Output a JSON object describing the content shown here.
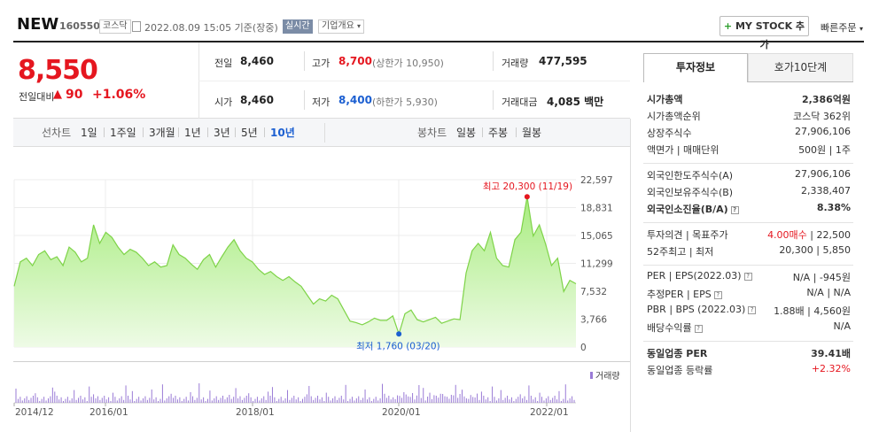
{
  "header": {
    "name": "NEW",
    "code": "160550",
    "market": "코스닥",
    "datetime": "2022.08.09 15:05 기준(장중)",
    "realtime": "실시간",
    "company_overview": "기업개요",
    "mystock": "MY STOCK 추가",
    "quick_order": "빠른주문"
  },
  "quote": {
    "price": "8,550",
    "change_label": "전일대비",
    "change_value": "90",
    "change_pct": "+1.06%",
    "prev_label": "전일",
    "prev_value": "8,460",
    "high_label": "고가",
    "high_value": "8,700",
    "high_limit": "(상한가 10,950)",
    "volume_label": "거래량",
    "volume_value": "477,595",
    "open_label": "시가",
    "open_value": "8,460",
    "low_label": "저가",
    "low_value": "8,400",
    "low_limit": "(하한가 5,930)",
    "amount_label": "거래대금",
    "amount_value": "4,085 백만"
  },
  "toolbar": {
    "line_label": "선차트",
    "periods": [
      "1일",
      "1주일",
      "3개월",
      "1년",
      "3년",
      "5년",
      "10년"
    ],
    "active_period": "10년",
    "candle_label": "봉차트",
    "candles": [
      "일봉",
      "주봉",
      "월봉"
    ]
  },
  "chart_data": {
    "type": "area",
    "title": "",
    "y_ticks": [
      "22,597",
      "18,831",
      "15,065",
      "11,299",
      "7,532",
      "3,766",
      "0"
    ],
    "ylim": [
      0,
      22597
    ],
    "x_ticks": [
      "2014/12",
      "2016/01",
      "2018/01",
      "2020/01",
      "2022/01"
    ],
    "high_annotation": "최고 20,300 (11/19)",
    "low_annotation": "최저 1,760 (03/20)",
    "volume_label": "거래량",
    "series": [
      {
        "x": [
          "2014/12",
          "2015/01",
          "2015/02",
          "2015/03",
          "2015/04",
          "2015/05",
          "2015/06",
          "2015/07",
          "2015/08",
          "2015/09",
          "2015/10",
          "2015/11",
          "2015/12",
          "2016/01",
          "2016/02",
          "2016/03",
          "2016/04",
          "2016/05",
          "2016/06",
          "2016/07",
          "2016/08",
          "2016/09",
          "2016/10",
          "2016/11",
          "2016/12",
          "2017/01",
          "2017/02",
          "2017/03",
          "2017/04",
          "2017/05",
          "2017/06",
          "2017/07",
          "2017/08",
          "2017/09",
          "2017/10",
          "2017/11",
          "2017/12",
          "2018/01",
          "2018/02",
          "2018/03",
          "2018/04",
          "2018/05",
          "2018/06",
          "2018/07",
          "2018/08",
          "2018/09",
          "2018/10",
          "2018/11",
          "2018/12",
          "2019/01",
          "2019/02",
          "2019/03",
          "2019/04",
          "2019/05",
          "2019/06",
          "2019/07",
          "2019/08",
          "2019/09",
          "2019/10",
          "2019/11",
          "2019/12",
          "2020/01",
          "2020/02",
          "2020/03",
          "2020/04",
          "2020/05",
          "2020/06",
          "2020/07",
          "2020/08",
          "2020/09",
          "2020/10",
          "2020/11",
          "2020/12",
          "2021/01",
          "2021/02",
          "2021/03",
          "2021/04",
          "2021/05",
          "2021/06",
          "2021/07",
          "2021/08",
          "2021/09",
          "2021/10",
          "2021/11",
          "2021/12",
          "2022/01",
          "2022/02",
          "2022/03",
          "2022/04",
          "2022/05",
          "2022/06",
          "2022/07",
          "2022/08"
        ],
        "values": [
          8200,
          11500,
          12000,
          11000,
          12500,
          13000,
          11800,
          12200,
          11000,
          13500,
          12800,
          11500,
          12000,
          16500,
          14000,
          15500,
          14800,
          13500,
          12500,
          13200,
          12800,
          12000,
          11000,
          11500,
          10800,
          11000,
          13800,
          12500,
          12000,
          11200,
          10500,
          11800,
          12500,
          10800,
          12200,
          13500,
          14500,
          13000,
          12000,
          11500,
          10500,
          9800,
          10200,
          9500,
          9000,
          9500,
          8800,
          8200,
          7000,
          5800,
          6500,
          6200,
          7000,
          6500,
          5000,
          3500,
          3300,
          3000,
          3400,
          3900,
          3600,
          3600,
          4200,
          1760,
          4500,
          5000,
          3700,
          3400,
          3700,
          4000,
          3200,
          3500,
          3800,
          3700,
          10000,
          13000,
          14000,
          13000,
          15500,
          12000,
          11000,
          10800,
          14500,
          15500,
          20300,
          15000,
          16500,
          14000,
          11000,
          12000,
          7500,
          9000,
          8550
        ]
      }
    ]
  },
  "side": {
    "tabs": [
      "투자정보",
      "호가10단계"
    ],
    "rows1": [
      {
        "l": "시가총액",
        "r": "2,386억원"
      },
      {
        "l": "시가총액순위",
        "r": "코스닥 362위"
      },
      {
        "l": "상장주식수",
        "r": "27,906,106"
      },
      {
        "l": "액면가 | 매매단위",
        "r": "500원 | 1주"
      }
    ],
    "rows2": [
      {
        "l": "외국인한도주식수(A)",
        "r": "27,906,106"
      },
      {
        "l": "외국인보유주식수(B)",
        "r": "2,338,407"
      },
      {
        "l": "외국인소진율(B/A)",
        "r": "8.38%"
      }
    ],
    "rows3": [
      {
        "l": "투자의견 | 목표주가",
        "r1": "4.00매수",
        "r2": "| 22,500"
      },
      {
        "l": "52주최고 | 최저",
        "r": "20,300 | 5,850"
      }
    ],
    "rows4": [
      {
        "l": "PER | EPS(2022.03)",
        "r": "N/A | -945원"
      },
      {
        "l": "추정PER | EPS",
        "r": "N/A | N/A"
      },
      {
        "l": "PBR | BPS (2022.03)",
        "r": "1.88배 | 4,560원"
      },
      {
        "l": "배당수익률",
        "r": "N/A"
      }
    ],
    "rows5": [
      {
        "l": "동일업종 PER",
        "r": "39.41배"
      },
      {
        "l": "동일업종 등락률",
        "r": "+2.32%"
      }
    ]
  }
}
